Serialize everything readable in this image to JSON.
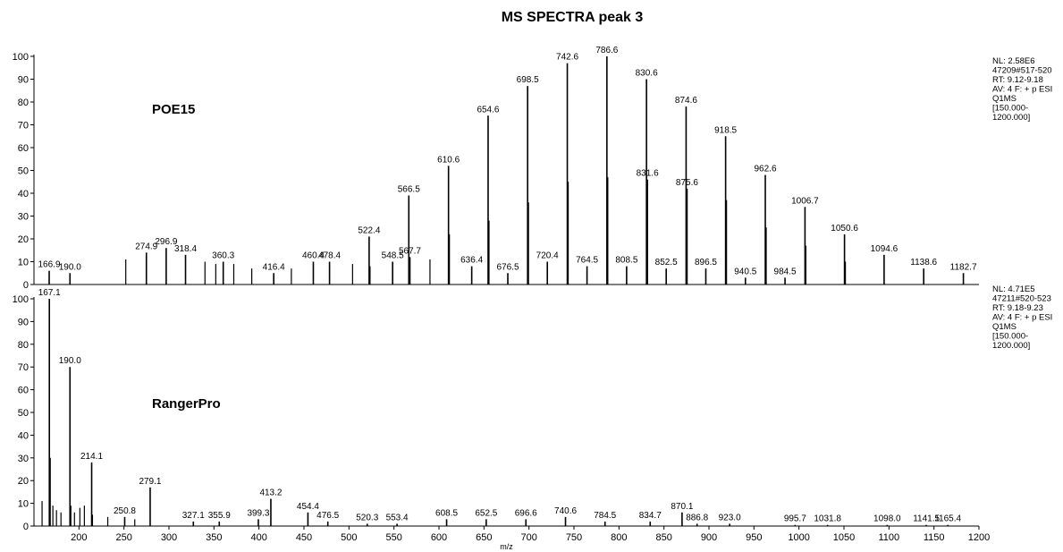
{
  "chart_data": [
    {
      "type": "spectrum",
      "title": "MS SPECTRA peak 3",
      "label": "POE15",
      "notes": [
        "NL: 2.58E6",
        "47209#517-520",
        "RT: 9.12-9.18",
        "AV: 4 F: + p ESI",
        "Q1MS",
        "[150.000-",
        "1200.000]"
      ],
      "xlim": [
        150,
        1200
      ],
      "ylim": [
        0,
        100
      ],
      "yticks": [
        0,
        10,
        20,
        30,
        40,
        50,
        60,
        70,
        80,
        90,
        100
      ],
      "color": "#000000",
      "x": [
        166.9,
        {
          "value": 190,
          "label": "190.0"
        },
        274.9,
        296.9,
        318.4,
        360.3,
        416.4,
        460.4,
        478.4,
        522.4,
        548.5,
        566.5,
        567.7,
        610.6,
        636.4,
        654.6,
        676.5,
        698.5,
        720.4,
        742.6,
        764.5,
        786.6,
        808.5,
        830.6,
        831.6,
        852.5,
        874.6,
        875.6,
        896.5,
        918.5,
        940.5,
        962.6,
        984.5,
        1006.7,
        1050.6,
        1094.6,
        1138.6,
        1182.7
      ],
      "values": [
        6,
        5,
        14,
        16,
        13,
        10,
        5,
        10,
        10,
        21,
        10,
        39,
        12,
        52,
        8,
        74,
        5,
        87,
        10,
        97,
        8,
        100,
        8,
        90,
        46,
        7,
        78,
        42,
        7,
        65,
        3,
        48,
        3,
        34,
        22,
        13,
        7,
        5
      ],
      "minor_x": [
        252,
        340,
        352,
        372,
        392,
        436,
        504,
        523.4,
        590,
        611.6,
        655.6,
        699.5,
        743.6,
        787.6,
        919.5,
        963.6,
        1007.7,
        1051.6
      ],
      "minor_values": [
        11,
        10,
        9,
        9,
        7,
        7,
        9,
        8,
        11,
        22,
        28,
        36,
        45,
        47,
        37,
        25,
        17,
        10
      ]
    },
    {
      "type": "spectrum",
      "label": "RangerPro",
      "xlabel": "m/z",
      "notes": [
        "NL: 4.71E5",
        "47211#520-523",
        "RT: 9.18-9.23",
        "AV: 4 F: + p ESI",
        "Q1MS",
        "[150.000-",
        "1200.000]"
      ],
      "xlim": [
        150,
        1200
      ],
      "ylim": [
        0,
        100
      ],
      "yticks": [
        0,
        10,
        20,
        30,
        40,
        50,
        60,
        70,
        80,
        90,
        100
      ],
      "color": "#000000",
      "xticks": [
        200,
        250,
        300,
        350,
        400,
        450,
        500,
        550,
        600,
        650,
        700,
        750,
        800,
        850,
        900,
        950,
        1000,
        1050,
        1100,
        1150,
        1200
      ],
      "x": [
        167.1,
        {
          "value": 190,
          "label": "190.0"
        },
        214.1,
        250.8,
        279.1,
        327.1,
        355.9,
        399.3,
        413.2,
        454.4,
        476.5,
        520.3,
        553.4,
        608.5,
        652.5,
        696.6,
        740.6,
        784.5,
        834.7,
        870.1,
        886.8,
        {
          "value": 923,
          "label": "923.0"
        },
        995.7,
        1031.8,
        {
          "value": 1098,
          "label": "1098.0"
        },
        1141.5,
        1165.4
      ],
      "values": [
        100,
        70,
        28,
        4,
        17,
        2,
        2,
        3,
        12,
        6,
        2,
        1,
        1,
        3,
        3,
        3,
        4,
        2,
        2,
        6,
        1,
        1,
        0.5,
        0.5,
        0.5,
        0.5,
        0.5
      ],
      "minor_x": [
        159,
        168.1,
        171,
        175,
        180,
        191,
        195,
        201,
        206,
        215,
        232,
        262
      ],
      "minor_values": [
        11,
        30,
        9,
        7,
        6,
        9,
        6,
        8,
        9,
        5,
        4,
        3
      ]
    }
  ]
}
